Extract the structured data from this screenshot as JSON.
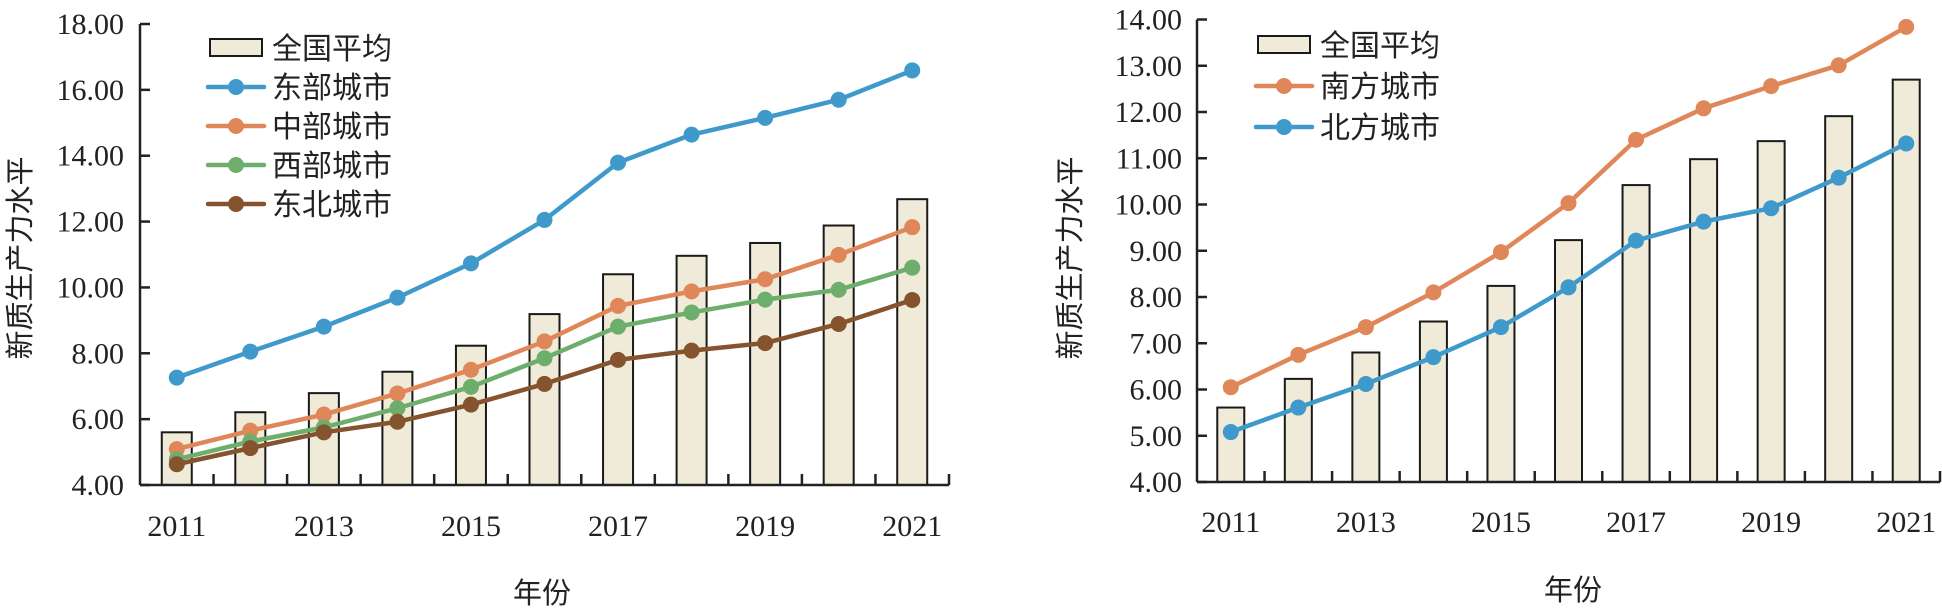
{
  "chart_data": [
    {
      "type": "bar+line",
      "title": "",
      "xlabel": "年份",
      "ylabel": "新质生产力水平",
      "ylim": [
        4,
        18
      ],
      "yticks": [
        "4.00",
        "6.00",
        "8.00",
        "10.00",
        "12.00",
        "14.00",
        "16.00",
        "18.00"
      ],
      "categories": [
        "2011",
        "2012",
        "2013",
        "2014",
        "2015",
        "2016",
        "2017",
        "2018",
        "2019",
        "2020",
        "2021"
      ],
      "xtick_labels": [
        "2011",
        "2013",
        "2015",
        "2017",
        "2019",
        "2021"
      ],
      "grid": false,
      "legend_position": "top-left",
      "bar_series": {
        "name": "全国平均",
        "color": "#EFEBD8",
        "values": [
          5.6,
          6.21,
          6.79,
          7.44,
          8.23,
          9.19,
          10.4,
          10.96,
          11.35,
          11.88,
          12.68
        ]
      },
      "series": [
        {
          "name": "东部城市",
          "color": "#3F9ACB",
          "values": [
            7.26,
            8.05,
            8.81,
            9.69,
            10.73,
            12.05,
            13.79,
            14.64,
            15.15,
            15.7,
            16.59
          ]
        },
        {
          "name": "中部城市",
          "color": "#E0875A",
          "values": [
            5.09,
            5.65,
            6.14,
            6.78,
            7.5,
            8.36,
            9.44,
            9.88,
            10.25,
            10.99,
            11.83
          ]
        },
        {
          "name": "西部城市",
          "color": "#6DAE6D",
          "values": [
            4.78,
            5.32,
            5.75,
            6.33,
            6.98,
            7.85,
            8.81,
            9.24,
            9.63,
            9.93,
            10.6
          ]
        },
        {
          "name": "东北城市",
          "color": "#85532E",
          "values": [
            4.63,
            5.12,
            5.6,
            5.92,
            6.44,
            7.07,
            7.8,
            8.08,
            8.31,
            8.89,
            9.62
          ]
        }
      ]
    },
    {
      "type": "bar+line",
      "title": "",
      "xlabel": "年份",
      "ylabel": "新质生产力水平",
      "ylim": [
        4,
        14
      ],
      "yticks": [
        "4.00",
        "5.00",
        "6.00",
        "7.00",
        "8.00",
        "9.00",
        "10.00",
        "11.00",
        "12.00",
        "13.00",
        "14.00"
      ],
      "categories": [
        "2011",
        "2012",
        "2013",
        "2014",
        "2015",
        "2016",
        "2017",
        "2018",
        "2019",
        "2020",
        "2021"
      ],
      "xtick_labels": [
        "2011",
        "2013",
        "2015",
        "2017",
        "2019",
        "2021"
      ],
      "grid": false,
      "legend_position": "top-left",
      "bar_series": {
        "name": "全国平均",
        "color": "#EFEBD8",
        "values": [
          5.61,
          6.23,
          6.8,
          7.47,
          8.24,
          9.23,
          10.42,
          10.98,
          11.37,
          11.91,
          12.7
        ]
      },
      "series": [
        {
          "name": "南方城市",
          "color": "#E0875A",
          "values": [
            6.05,
            6.75,
            7.35,
            8.1,
            8.97,
            10.03,
            11.4,
            12.08,
            12.56,
            13.01,
            13.84
          ]
        },
        {
          "name": "北方城市",
          "color": "#3F9ACB",
          "values": [
            5.08,
            5.61,
            6.12,
            6.7,
            7.35,
            8.21,
            9.22,
            9.63,
            9.92,
            10.58,
            11.32
          ]
        }
      ]
    }
  ]
}
